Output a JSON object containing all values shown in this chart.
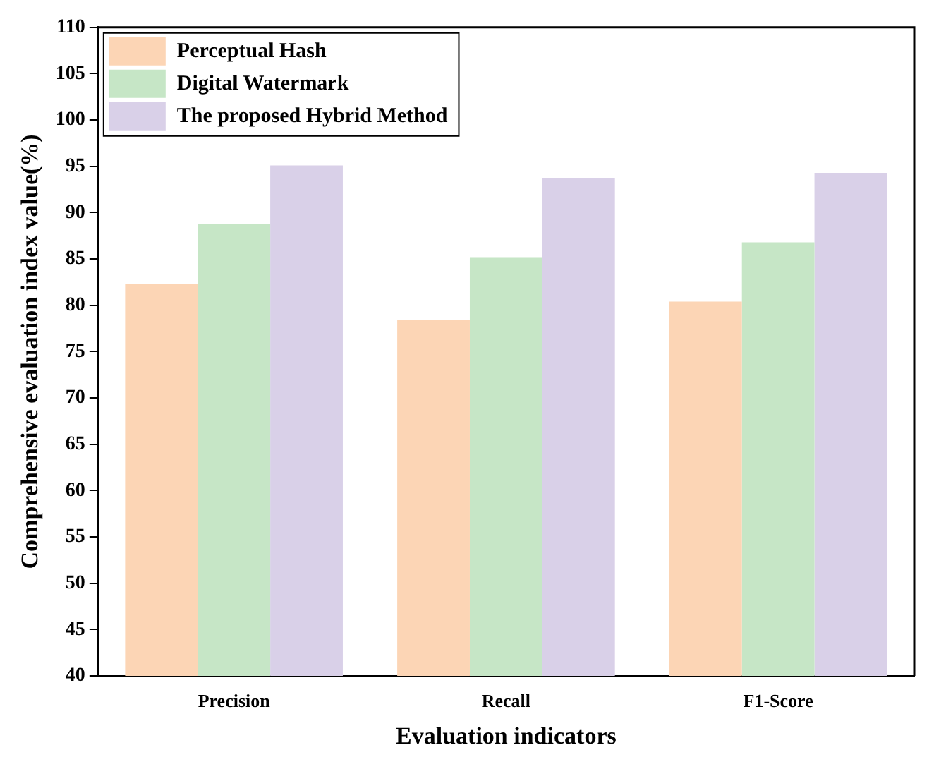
{
  "chart_data": {
    "type": "bar",
    "xlabel": "Evaluation indicators",
    "ylabel": "Comprehensive evaluation index value(%)",
    "categories": [
      "Precision",
      "Recall",
      "F1-Score"
    ],
    "series": [
      {
        "name": "Perceptual Hash",
        "color": "#fcd5b5",
        "values": [
          82.3,
          78.4,
          80.4
        ]
      },
      {
        "name": "Digital Watermark",
        "color": "#c6e6c6",
        "values": [
          88.8,
          85.2,
          86.8
        ]
      },
      {
        "name": "The proposed Hybrid Method",
        "color": "#d9d0e8",
        "values": [
          95.1,
          93.7,
          94.3
        ]
      }
    ],
    "ylim": [
      40,
      110
    ],
    "yticks": [
      40,
      45,
      50,
      55,
      60,
      65,
      70,
      75,
      80,
      85,
      90,
      95,
      100,
      105,
      110
    ],
    "grid": false,
    "legend": "top left"
  }
}
